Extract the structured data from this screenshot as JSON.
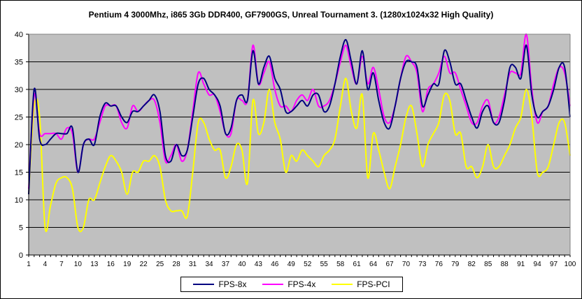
{
  "chart_data": {
    "type": "line",
    "title": "Pentium 4 3000Mhz, i865 3Gb DDR400, GF7900GS, Unreal Tournament 3. (1280x1024x32 High Quality)",
    "xlabel": "",
    "ylabel": "",
    "ylim": [
      0,
      40
    ],
    "yticks": [
      0,
      5,
      10,
      15,
      20,
      25,
      30,
      35,
      40
    ],
    "x": [
      1,
      2,
      3,
      4,
      5,
      6,
      7,
      8,
      9,
      10,
      11,
      12,
      13,
      14,
      15,
      16,
      17,
      18,
      19,
      20,
      21,
      22,
      23,
      24,
      25,
      26,
      27,
      28,
      29,
      30,
      31,
      32,
      33,
      34,
      35,
      36,
      37,
      38,
      39,
      40,
      41,
      42,
      43,
      44,
      45,
      46,
      47,
      48,
      49,
      50,
      51,
      52,
      53,
      54,
      55,
      56,
      57,
      58,
      59,
      60,
      61,
      62,
      63,
      64,
      65,
      66,
      67,
      68,
      69,
      70,
      71,
      72,
      73,
      74,
      75,
      76,
      77,
      78,
      79,
      80,
      81,
      82,
      83,
      84,
      85,
      86,
      87,
      88,
      89,
      90,
      91,
      92,
      93,
      94,
      95,
      96,
      97,
      98,
      99,
      100
    ],
    "x_tick_labels": [
      "1",
      "4",
      "7",
      "10",
      "13",
      "16",
      "19",
      "22",
      "25",
      "28",
      "31",
      "34",
      "37",
      "40",
      "43",
      "46",
      "49",
      "52",
      "55",
      "58",
      "61",
      "64",
      "67",
      "70",
      "73",
      "76",
      "79",
      "82",
      "85",
      "88",
      "91",
      "94",
      "97",
      "100"
    ],
    "grid": "horizontal",
    "legend_position": "bottom",
    "background_color": "#c0c0c0",
    "series": [
      {
        "name": "FPS-8x",
        "color": "#000080",
        "values": [
          11,
          30,
          21,
          20,
          21,
          22,
          22,
          22,
          23,
          15,
          20,
          21,
          20,
          25,
          27.5,
          27,
          27,
          25,
          24,
          26,
          26,
          27,
          28,
          29,
          26,
          18,
          17,
          20,
          18,
          19,
          25,
          31,
          32,
          30,
          29,
          27,
          22,
          23,
          28,
          29,
          28,
          37,
          31,
          34,
          36,
          32,
          30,
          26,
          26,
          27,
          28,
          27,
          29,
          29,
          26,
          27,
          31,
          36,
          39,
          35,
          31,
          37,
          30,
          33,
          28,
          24,
          23,
          27,
          32,
          35,
          35,
          34,
          27,
          29,
          31,
          31,
          37,
          35,
          31,
          31,
          28,
          25,
          23,
          26,
          27,
          24,
          24,
          28,
          34,
          34,
          32,
          38,
          29,
          25,
          26,
          27,
          30,
          34,
          34,
          25
        ]
      },
      {
        "name": "FPS-4x",
        "color": "#ff00ff",
        "values": [
          12,
          29,
          22,
          22,
          22,
          22,
          21,
          23,
          22,
          15,
          20,
          21,
          21,
          24,
          27,
          27,
          27,
          24,
          23,
          27,
          26,
          27,
          28,
          28,
          24,
          17,
          18,
          20,
          17,
          19,
          26,
          33,
          31,
          29,
          29,
          26,
          22,
          22,
          28,
          28,
          28,
          38,
          31,
          33,
          35,
          30,
          27,
          27,
          26,
          28,
          29,
          28,
          30,
          27,
          27,
          28,
          31,
          35,
          38,
          34,
          31,
          36,
          31,
          34,
          30,
          25,
          24,
          27,
          32,
          36,
          35,
          33,
          26,
          30,
          31,
          33,
          36,
          33,
          33,
          30,
          27,
          24,
          24,
          27,
          28,
          24,
          25,
          29,
          33,
          33,
          33,
          40,
          30,
          24,
          26,
          27,
          31,
          34,
          33,
          27
        ]
      },
      {
        "name": "FPS-PCI",
        "color": "#ffff00",
        "values": [
          11,
          27,
          25,
          5,
          9,
          13,
          14,
          14,
          12,
          5,
          5,
          10,
          10,
          13,
          16,
          18,
          17,
          15,
          11,
          15,
          15,
          17,
          17,
          18,
          16,
          10,
          8,
          8,
          8,
          7,
          15,
          24,
          24,
          21,
          19,
          19,
          14,
          16,
          20,
          19,
          13,
          28,
          22,
          24,
          30,
          24,
          21,
          15,
          18,
          17,
          19,
          18,
          17,
          16,
          18,
          19,
          21,
          27,
          32,
          26,
          23,
          29,
          14,
          22,
          19,
          15,
          12,
          16,
          20,
          25,
          27,
          22,
          16,
          20,
          22,
          24,
          29,
          28,
          22,
          22,
          16,
          16,
          14,
          16,
          20,
          16,
          16,
          18,
          20,
          23,
          25,
          30,
          25,
          15,
          15,
          16,
          20,
          24,
          24,
          18
        ]
      }
    ]
  }
}
